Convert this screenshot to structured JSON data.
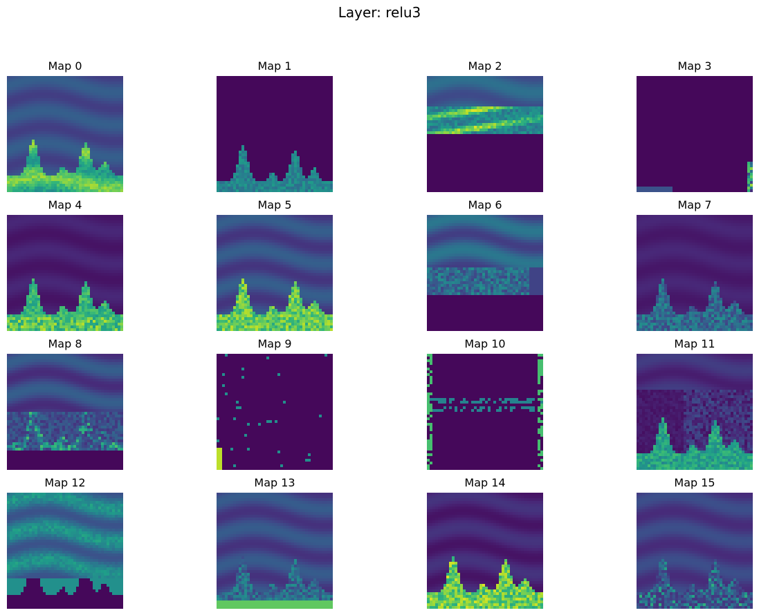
{
  "chart_data": {
    "type": "heatmap",
    "title": "Layer: relu3",
    "colormap": "viridis",
    "colormap_stops": [
      "#440154",
      "#482878",
      "#3e4a89",
      "#31688e",
      "#26828e",
      "#1f9e89",
      "#35b779",
      "#6ece58",
      "#b5de2b",
      "#fde725"
    ],
    "grid": false,
    "axes_visible": false,
    "layout": {
      "rows": 4,
      "cols": 4
    },
    "maps": [
      {
        "title": "Map 0"
      },
      {
        "title": "Map 1"
      },
      {
        "title": "Map 2"
      },
      {
        "title": "Map 3"
      },
      {
        "title": "Map 4"
      },
      {
        "title": "Map 5"
      },
      {
        "title": "Map 6"
      },
      {
        "title": "Map 7"
      },
      {
        "title": "Map 8"
      },
      {
        "title": "Map 9"
      },
      {
        "title": "Map 10"
      },
      {
        "title": "Map 11"
      },
      {
        "title": "Map 12"
      },
      {
        "title": "Map 13"
      },
      {
        "title": "Map 14"
      },
      {
        "title": "Map 15"
      }
    ]
  }
}
